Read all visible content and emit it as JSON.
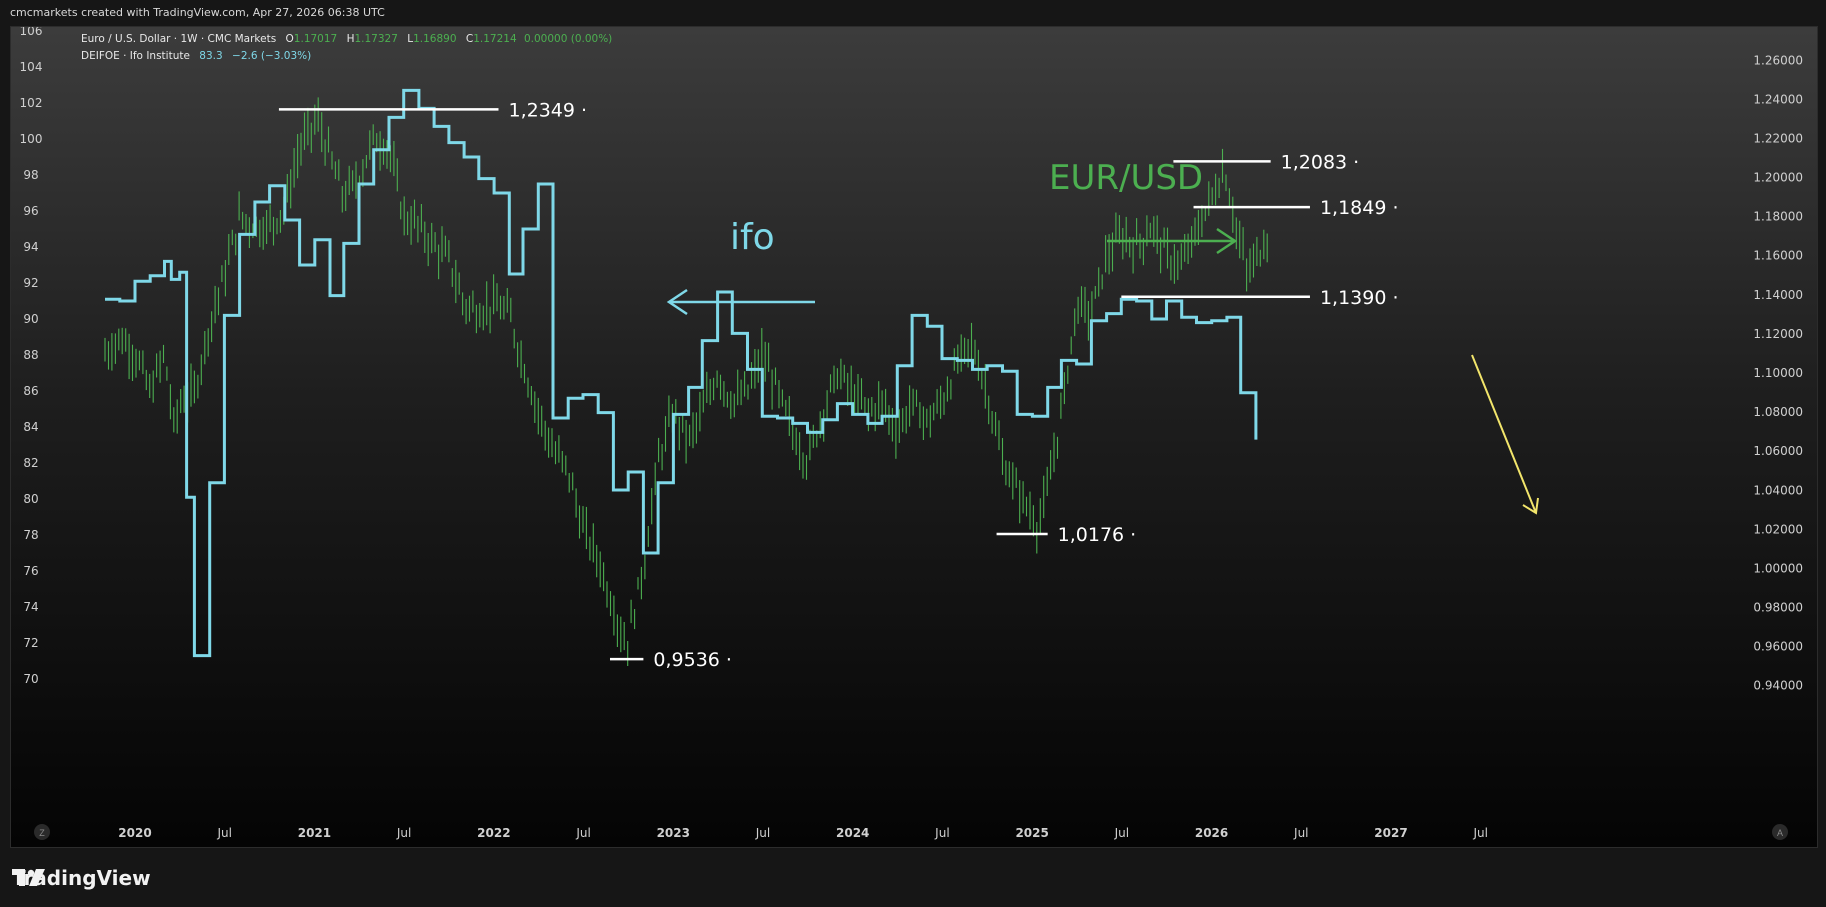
{
  "header": {
    "text": "cmcmarkets created with TradingView.com, Apr 27, 2026 06:38 UTC"
  },
  "legend": {
    "eurusd": {
      "name": "Euro / U.S. Dollar · 1W · CMC Markets",
      "o_label": "O",
      "o": "1.17017",
      "h_label": "H",
      "h": "1.17327",
      "l_label": "L",
      "l": "1.16890",
      "c_label": "C",
      "c": "1.17214",
      "chg": "0.00000 (0.00%)"
    },
    "ifo": {
      "name": "DEIFOE · Ifo Institute",
      "value": "83.3",
      "chg": "−2.6 (−3.03%)"
    }
  },
  "footer": {
    "brand": "TradingView"
  },
  "corner_buttons": {
    "left": "Z",
    "right": "A"
  },
  "chart_data": {
    "type": "line",
    "x_ticks": [
      "2020",
      "Jul",
      "2021",
      "Jul",
      "2022",
      "Jul",
      "2023",
      "Jul",
      "2024",
      "Jul",
      "2025",
      "Jul",
      "2026",
      "Jul",
      "2027",
      "Jul"
    ],
    "left_axis": {
      "ticks": [
        70,
        72,
        74,
        76,
        78,
        80,
        82,
        84,
        86,
        88,
        90,
        92,
        94,
        96,
        98,
        100,
        102,
        104,
        106
      ],
      "range": [
        68,
        106
      ]
    },
    "right_axis": {
      "ticks": [
        "0.94000",
        "0.96000",
        "0.98000",
        "1.00000",
        "1.02000",
        "1.04000",
        "1.06000",
        "1.08000",
        "1.10000",
        "1.12000",
        "1.14000",
        "1.16000",
        "1.18000",
        "1.20000",
        "1.22000",
        "1.24000",
        "1.26000"
      ],
      "range": [
        0.925,
        1.275
      ]
    },
    "colors": {
      "ifo": "#7fd8e8",
      "eurusd": "#4caf50",
      "annotation_eurusd": "#4caf50",
      "annotation_ifo": "#7fd8e8",
      "arrow_yellow": "#f2e56b",
      "level": "#ffffff"
    },
    "series": [
      {
        "name": "DEIFOE · Ifo Institute",
        "axis": "left",
        "style": "step",
        "points": [
          [
            "2019-11-01",
            91.1
          ],
          [
            "2019-12-01",
            91.0
          ],
          [
            "2020-01-01",
            92.1
          ],
          [
            "2020-02-01",
            92.4
          ],
          [
            "2020-03-01",
            93.2
          ],
          [
            "2020-03-15",
            92.2
          ],
          [
            "2020-04-01",
            92.6
          ],
          [
            "2020-04-15",
            80.1
          ],
          [
            "2020-05-01",
            71.3
          ],
          [
            "2020-06-01",
            80.9
          ],
          [
            "2020-07-01",
            90.2
          ],
          [
            "2020-08-01",
            94.7
          ],
          [
            "2020-09-01",
            96.5
          ],
          [
            "2020-10-01",
            97.4
          ],
          [
            "2020-11-01",
            95.5
          ],
          [
            "2020-12-01",
            93.0
          ],
          [
            "2021-01-01",
            94.4
          ],
          [
            "2021-02-01",
            91.3
          ],
          [
            "2021-03-01",
            94.2
          ],
          [
            "2021-04-01",
            97.5
          ],
          [
            "2021-05-01",
            99.4
          ],
          [
            "2021-06-01",
            101.2
          ],
          [
            "2021-07-01",
            102.7
          ],
          [
            "2021-08-01",
            101.7
          ],
          [
            "2021-09-01",
            100.7
          ],
          [
            "2021-10-01",
            99.8
          ],
          [
            "2021-11-01",
            99.0
          ],
          [
            "2021-12-01",
            97.8
          ],
          [
            "2022-01-01",
            97.0
          ],
          [
            "2022-02-01",
            92.5
          ],
          [
            "2022-03-01",
            95.0
          ],
          [
            "2022-04-01",
            97.5
          ],
          [
            "2022-05-01",
            84.5
          ],
          [
            "2022-06-01",
            85.6
          ],
          [
            "2022-07-01",
            85.8
          ],
          [
            "2022-08-01",
            84.8
          ],
          [
            "2022-09-01",
            80.5
          ],
          [
            "2022-10-01",
            81.5
          ],
          [
            "2022-11-01",
            77.0
          ],
          [
            "2022-12-01",
            80.9
          ],
          [
            "2023-01-01",
            84.7
          ],
          [
            "2023-02-01",
            86.2
          ],
          [
            "2023-03-01",
            88.8
          ],
          [
            "2023-04-01",
            91.5
          ],
          [
            "2023-05-01",
            89.2
          ],
          [
            "2023-06-01",
            87.2
          ],
          [
            "2023-07-01",
            84.6
          ],
          [
            "2023-08-01",
            84.5
          ],
          [
            "2023-09-01",
            84.2
          ],
          [
            "2023-10-01",
            83.7
          ],
          [
            "2023-11-01",
            84.4
          ],
          [
            "2023-12-01",
            85.3
          ],
          [
            "2024-01-01",
            84.7
          ],
          [
            "2024-02-01",
            84.2
          ],
          [
            "2024-03-01",
            84.6
          ],
          [
            "2024-04-01",
            87.4
          ],
          [
            "2024-05-01",
            90.2
          ],
          [
            "2024-06-01",
            89.6
          ],
          [
            "2024-07-01",
            87.8
          ],
          [
            "2024-08-01",
            87.7
          ],
          [
            "2024-09-01",
            87.2
          ],
          [
            "2024-10-01",
            87.4
          ],
          [
            "2024-11-01",
            87.1
          ],
          [
            "2024-12-01",
            84.7
          ],
          [
            "2025-01-01",
            84.6
          ],
          [
            "2025-02-01",
            86.2
          ],
          [
            "2025-03-01",
            87.7
          ],
          [
            "2025-04-01",
            87.5
          ],
          [
            "2025-05-01",
            89.9
          ],
          [
            "2025-06-01",
            90.3
          ],
          [
            "2025-07-01",
            91.1
          ],
          [
            "2025-08-01",
            91.0
          ],
          [
            "2025-09-01",
            90.0
          ],
          [
            "2025-10-01",
            91.0
          ],
          [
            "2025-11-01",
            90.1
          ],
          [
            "2025-12-01",
            89.8
          ],
          [
            "2026-01-01",
            89.9
          ],
          [
            "2026-02-01",
            90.1
          ],
          [
            "2026-03-01",
            85.9
          ],
          [
            "2026-04-01",
            83.3
          ]
        ]
      },
      {
        "name": "Euro / U.S. Dollar · 1W · CMC Markets",
        "axis": "right",
        "style": "weekly-bars",
        "points": [
          [
            "2019-11-01",
            1.11
          ],
          [
            "2019-12-01",
            1.118
          ],
          [
            "2020-01-01",
            1.11
          ],
          [
            "2020-02-01",
            1.09
          ],
          [
            "2020-03-01",
            1.11
          ],
          [
            "2020-03-20",
            1.072
          ],
          [
            "2020-04-01",
            1.085
          ],
          [
            "2020-05-01",
            1.09
          ],
          [
            "2020-06-01",
            1.125
          ],
          [
            "2020-07-01",
            1.15
          ],
          [
            "2020-08-01",
            1.18
          ],
          [
            "2020-09-01",
            1.175
          ],
          [
            "2020-10-01",
            1.175
          ],
          [
            "2020-11-01",
            1.185
          ],
          [
            "2020-12-01",
            1.215
          ],
          [
            "2021-01-06",
            1.23
          ],
          [
            "2021-02-01",
            1.21
          ],
          [
            "2021-03-01",
            1.19
          ],
          [
            "2021-04-01",
            1.2
          ],
          [
            "2021-05-01",
            1.22
          ],
          [
            "2021-06-01",
            1.215
          ],
          [
            "2021-07-01",
            1.18
          ],
          [
            "2021-08-01",
            1.175
          ],
          [
            "2021-09-01",
            1.165
          ],
          [
            "2021-10-01",
            1.158
          ],
          [
            "2021-11-01",
            1.135
          ],
          [
            "2021-12-01",
            1.132
          ],
          [
            "2022-01-01",
            1.135
          ],
          [
            "2022-02-01",
            1.13
          ],
          [
            "2022-03-01",
            1.105
          ],
          [
            "2022-04-01",
            1.08
          ],
          [
            "2022-05-01",
            1.06
          ],
          [
            "2022-06-01",
            1.05
          ],
          [
            "2022-07-01",
            1.02
          ],
          [
            "2022-08-01",
            1.005
          ],
          [
            "2022-09-01",
            0.98
          ],
          [
            "2022-09-27",
            0.96
          ],
          [
            "2022-11-01",
            1.0
          ],
          [
            "2022-12-01",
            1.055
          ],
          [
            "2023-01-01",
            1.08
          ],
          [
            "2023-02-01",
            1.065
          ],
          [
            "2023-03-01",
            1.08
          ],
          [
            "2023-04-01",
            1.1
          ],
          [
            "2023-05-01",
            1.085
          ],
          [
            "2023-06-01",
            1.09
          ],
          [
            "2023-07-01",
            1.11
          ],
          [
            "2023-08-01",
            1.09
          ],
          [
            "2023-09-01",
            1.07
          ],
          [
            "2023-10-01",
            1.055
          ],
          [
            "2023-11-01",
            1.08
          ],
          [
            "2023-12-01",
            1.1
          ],
          [
            "2024-01-01",
            1.09
          ],
          [
            "2024-02-01",
            1.08
          ],
          [
            "2024-03-01",
            1.085
          ],
          [
            "2024-04-01",
            1.07
          ],
          [
            "2024-05-01",
            1.085
          ],
          [
            "2024-06-01",
            1.075
          ],
          [
            "2024-07-01",
            1.085
          ],
          [
            "2024-08-01",
            1.105
          ],
          [
            "2024-09-01",
            1.115
          ],
          [
            "2024-10-01",
            1.09
          ],
          [
            "2024-11-01",
            1.055
          ],
          [
            "2024-12-01",
            1.04
          ],
          [
            "2025-01-13",
            1.022
          ],
          [
            "2025-02-01",
            1.04
          ],
          [
            "2025-03-01",
            1.08
          ],
          [
            "2025-04-01",
            1.135
          ],
          [
            "2025-05-01",
            1.13
          ],
          [
            "2025-06-01",
            1.16
          ],
          [
            "2025-07-01",
            1.17
          ],
          [
            "2025-08-01",
            1.165
          ],
          [
            "2025-09-01",
            1.175
          ],
          [
            "2025-10-01",
            1.16
          ],
          [
            "2025-11-01",
            1.155
          ],
          [
            "2025-12-01",
            1.172
          ],
          [
            "2026-01-27",
            1.205
          ],
          [
            "2026-02-15",
            1.18
          ],
          [
            "2026-03-15",
            1.15
          ],
          [
            "2026-04-27",
            1.172
          ]
        ]
      }
    ],
    "levels": [
      {
        "value": 1.2349,
        "label": "1,2349",
        "from": "2020-10-20",
        "to": "2022-01-10"
      },
      {
        "value": 1.2083,
        "label": "1,2083",
        "from": "2025-10-15",
        "to": "2026-05-01"
      },
      {
        "value": 1.1849,
        "label": "1,1849",
        "from": "2025-11-25",
        "to": "2026-07-20"
      },
      {
        "value": 1.139,
        "label": "1,1390",
        "from": "2025-07-01",
        "to": "2026-07-20"
      },
      {
        "value": 1.0176,
        "label": "1,0176",
        "from": "2024-10-20",
        "to": "2025-02-01"
      },
      {
        "value": 0.9536,
        "label": "0,9536",
        "from": "2022-08-25",
        "to": "2022-11-01"
      }
    ],
    "annotations": [
      {
        "text": "EUR/USD",
        "color": "eurusd"
      },
      {
        "text": "ifo",
        "color": "ifo"
      }
    ]
  }
}
